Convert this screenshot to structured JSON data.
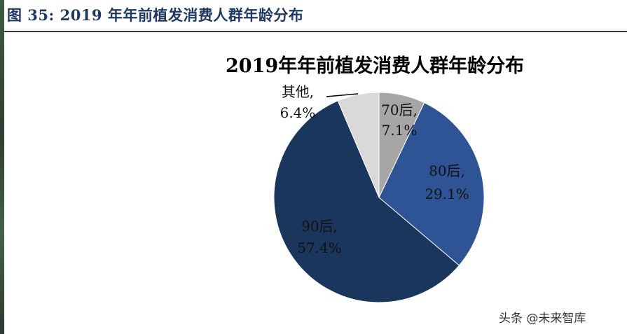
{
  "caption": "图 35:  2019 年年前植发消费人群年龄分布",
  "watermark": "头条 @未来智库",
  "chart_data": {
    "type": "pie",
    "title": "2019年年前植发消费人群年龄分布",
    "start_angle_deg": 0,
    "direction": "clockwise",
    "slices": [
      {
        "label": "70后,",
        "value_text": "7.1%",
        "value": 7.1,
        "color": "#a6a6a6"
      },
      {
        "label": "80后,",
        "value_text": "29.1%",
        "value": 29.1,
        "color": "#2f5496"
      },
      {
        "label": "90后,",
        "value_text": "57.4%",
        "value": 57.4,
        "color": "#1a365c"
      },
      {
        "label": "其他,",
        "value_text": "6.4%",
        "value": 6.4,
        "color": "#d9d9d9"
      }
    ]
  }
}
